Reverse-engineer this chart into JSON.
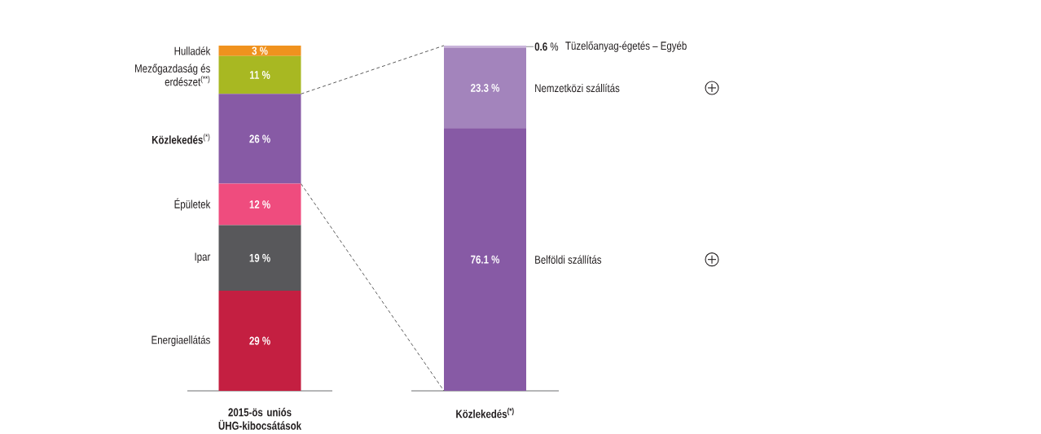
{
  "chart_data": [
    {
      "type": "bar",
      "stacked": true,
      "categories": [
        "2015-ös uniós ÜHG-kibocsátások"
      ],
      "tick_labels": "x",
      "series": [
        {
          "name": "Energiaellátás",
          "color": "#c41f41",
          "values": [
            29
          ],
          "value_labels": [
            "29 %"
          ]
        },
        {
          "name": "Ipar",
          "color": "#58585b",
          "values": [
            19
          ],
          "value_labels": [
            "19 %"
          ]
        },
        {
          "name": "Épületek",
          "color": "#ef4c7e",
          "values": [
            12
          ],
          "value_labels": [
            "12 %"
          ]
        },
        {
          "name": "**Közlekedés**$^{(*)}$",
          "color": "#875aa5",
          "values": [
            26
          ],
          "value_labels": [
            "26 %"
          ]
        },
        {
          "name": "Mezőgazdaság és erdészet$^{(**)}$",
          "color": "#a8b822",
          "values": [
            11
          ],
          "value_labels": [
            "11 %"
          ]
        },
        {
          "name": "Hulladék",
          "color": "#f0921e",
          "values": [
            3
          ],
          "value_labels": [
            "3 %"
          ]
        }
      ]
    },
    {
      "type": "bar",
      "stacked": true,
      "categories": [
        "Közlekedés$^{(*)}$"
      ],
      "tick_labels": "x",
      "series": [
        {
          "name": "Belföldi szállítás",
          "color": "#875aa5",
          "values": [
            76.1
          ],
          "value_labels": [
            "76.1 %"
          ]
        },
        {
          "name": "Nemzetközi szállítás",
          "color": "#a384bc",
          "values": [
            23.3
          ],
          "value_labels": [
            "23.3 %"
          ]
        },
        {
          "name": "Tüzelőanyag-égetés – Egyéb",
          "color": "#c9b4db",
          "values": [
            0.6
          ],
          "value_labels": [
            "**0.6** %"
          ]
        }
      ]
    }
  ]
}
